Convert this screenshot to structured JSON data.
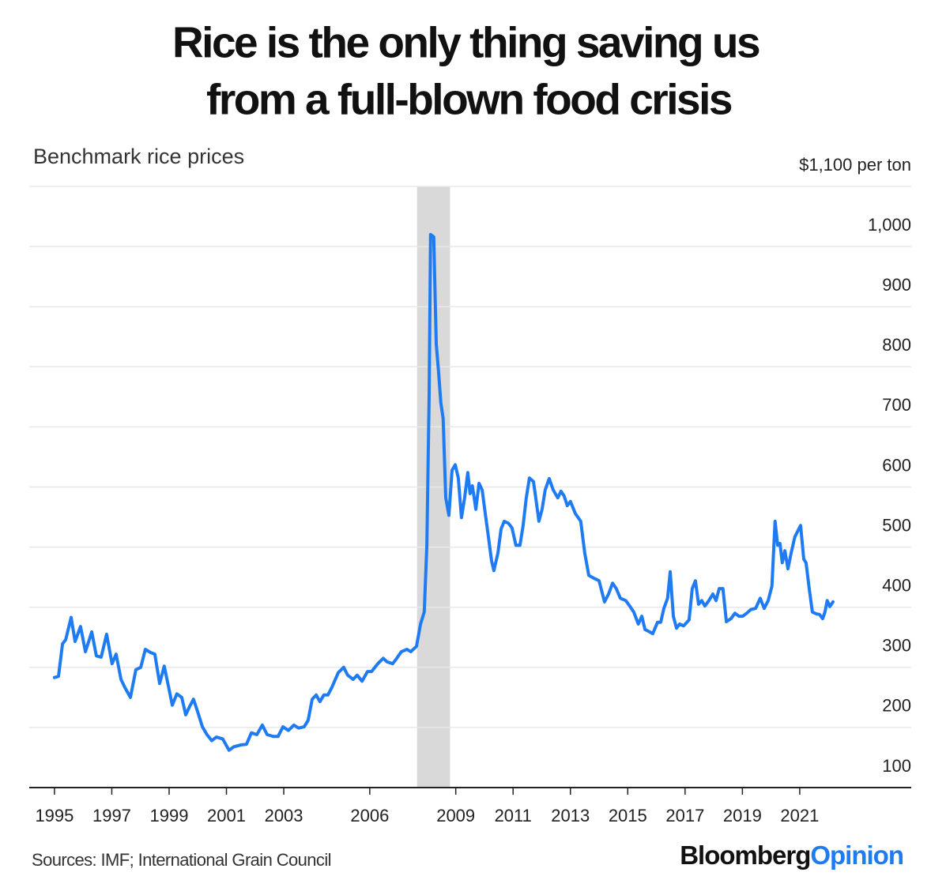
{
  "chart_data": {
    "type": "line",
    "title": [
      "Rice is the only thing saving us",
      "from a full-blown food crisis"
    ],
    "subtitle": "Benchmark rice prices",
    "source": "Sources: IMF; International Grain Council",
    "brand": [
      "Bloomberg",
      "Opinion"
    ],
    "highlight": [
      2007.65,
      2008.8
    ],
    "xlim": [
      1994.12,
      2024.89
    ],
    "xticks": [
      1995,
      1997,
      1999,
      2001,
      2003,
      2006,
      2009,
      2011,
      2013,
      2015,
      2017,
      2019,
      2021
    ],
    "ylim": [
      100,
      1100
    ],
    "yticks": [
      100,
      200,
      300,
      400,
      500,
      600,
      700,
      800,
      900,
      {
        "value": 1000,
        "label": "1,000"
      },
      {
        "value": 1100,
        "label": "$1,100 per ton"
      }
    ],
    "grid": true,
    "x": [
      1995.0,
      1995.14,
      1995.28,
      1995.39,
      1995.58,
      1995.72,
      1995.91,
      1996.08,
      1996.3,
      1996.46,
      1996.63,
      1996.82,
      1997.01,
      1997.15,
      1997.32,
      1997.45,
      1997.65,
      1997.84,
      1998.01,
      1998.17,
      1998.34,
      1998.5,
      1998.67,
      1998.83,
      1999.0,
      1999.11,
      1999.27,
      1999.44,
      1999.58,
      1999.71,
      1999.85,
      1999.99,
      2000.16,
      2000.32,
      2000.49,
      2000.65,
      2000.87,
      2001.09,
      2001.26,
      2001.51,
      2001.7,
      2001.87,
      2002.06,
      2002.25,
      2002.42,
      2002.64,
      2002.8,
      2002.97,
      2003.16,
      2003.35,
      2003.52,
      2003.71,
      2003.85,
      2003.99,
      2004.13,
      2004.26,
      2004.4,
      2004.54,
      2004.68,
      2004.9,
      2005.09,
      2005.23,
      2005.42,
      2005.56,
      2005.73,
      2005.92,
      2006.06,
      2006.28,
      2006.47,
      2006.61,
      2006.8,
      2006.94,
      2007.1,
      2007.3,
      2007.43,
      2007.63,
      2007.77,
      2007.9,
      2007.99,
      2008.07,
      2008.12,
      2008.23,
      2008.32,
      2008.4,
      2008.48,
      2008.56,
      2008.65,
      2008.76,
      2008.87,
      2008.98,
      2009.09,
      2009.2,
      2009.31,
      2009.42,
      2009.5,
      2009.58,
      2009.7,
      2009.81,
      2009.92,
      2010.03,
      2010.14,
      2010.25,
      2010.33,
      2010.47,
      2010.58,
      2010.69,
      2010.83,
      2010.96,
      2011.1,
      2011.24,
      2011.35,
      2011.46,
      2011.57,
      2011.71,
      2011.79,
      2011.9,
      2012.01,
      2012.12,
      2012.26,
      2012.4,
      2012.56,
      2012.67,
      2012.78,
      2012.89,
      2013.0,
      2013.17,
      2013.36,
      2013.5,
      2013.64,
      2013.83,
      2014.0,
      2014.19,
      2014.33,
      2014.47,
      2014.6,
      2014.74,
      2014.93,
      2015.07,
      2015.21,
      2015.37,
      2015.49,
      2015.6,
      2015.76,
      2015.87,
      2016.04,
      2016.15,
      2016.26,
      2016.39,
      2016.48,
      2016.59,
      2016.7,
      2016.81,
      2016.95,
      2017.14,
      2017.25,
      2017.36,
      2017.47,
      2017.58,
      2017.69,
      2017.83,
      2017.97,
      2018.08,
      2018.19,
      2018.32,
      2018.44,
      2018.6,
      2018.74,
      2018.88,
      2019.01,
      2019.15,
      2019.29,
      2019.46,
      2019.62,
      2019.76,
      2019.9,
      2020.03,
      2020.14,
      2020.23,
      2020.31,
      2020.39,
      2020.48,
      2020.59,
      2020.7,
      2020.83,
      2021.03,
      2021.14,
      2021.22,
      2021.33,
      2021.44,
      2021.58,
      2021.69,
      2021.8,
      2021.88,
      2021.96,
      2022.05,
      2022.16
    ],
    "series": [
      {
        "name": "Benchmark rice price",
        "color": "#1f7bf2",
        "values": [
          283,
          285,
          339,
          346,
          383,
          343,
          368,
          326,
          359,
          319,
          317,
          355,
          306,
          322,
          280,
          267,
          250,
          296,
          300,
          330,
          325,
          322,
          273,
          302,
          263,
          237,
          256,
          250,
          221,
          234,
          247,
          227,
          201,
          188,
          178,
          184,
          181,
          162,
          168,
          171,
          172,
          191,
          188,
          204,
          188,
          185,
          185,
          201,
          195,
          204,
          199,
          201,
          212,
          247,
          254,
          243,
          254,
          254,
          267,
          291,
          300,
          287,
          280,
          287,
          277,
          293,
          293,
          306,
          315,
          309,
          306,
          315,
          326,
          330,
          326,
          335,
          372,
          392,
          503,
          753,
          1020,
          1016,
          838,
          792,
          740,
          714,
          582,
          553,
          628,
          637,
          615,
          549,
          582,
          624,
          589,
          602,
          563,
          606,
          595,
          556,
          517,
          477,
          461,
          490,
          530,
          543,
          540,
          532,
          503,
          503,
          536,
          582,
          615,
          609,
          582,
          543,
          563,
          595,
          614,
          595,
          582,
          593,
          585,
          569,
          576,
          556,
          543,
          490,
          453,
          448,
          444,
          409,
          422,
          440,
          431,
          415,
          411,
          402,
          392,
          372,
          385,
          363,
          359,
          356,
          375,
          375,
          398,
          415,
          459,
          385,
          365,
          372,
          369,
          379,
          431,
          444,
          405,
          411,
          402,
          411,
          422,
          411,
          431,
          431,
          376,
          381,
          390,
          385,
          385,
          390,
          396,
          398,
          415,
          398,
          411,
          435,
          543,
          503,
          506,
          474,
          494,
          464,
          490,
          517,
          536,
          480,
          474,
          431,
          392,
          389,
          388,
          381,
          392,
          411,
          401,
          409
        ]
      }
    ]
  }
}
